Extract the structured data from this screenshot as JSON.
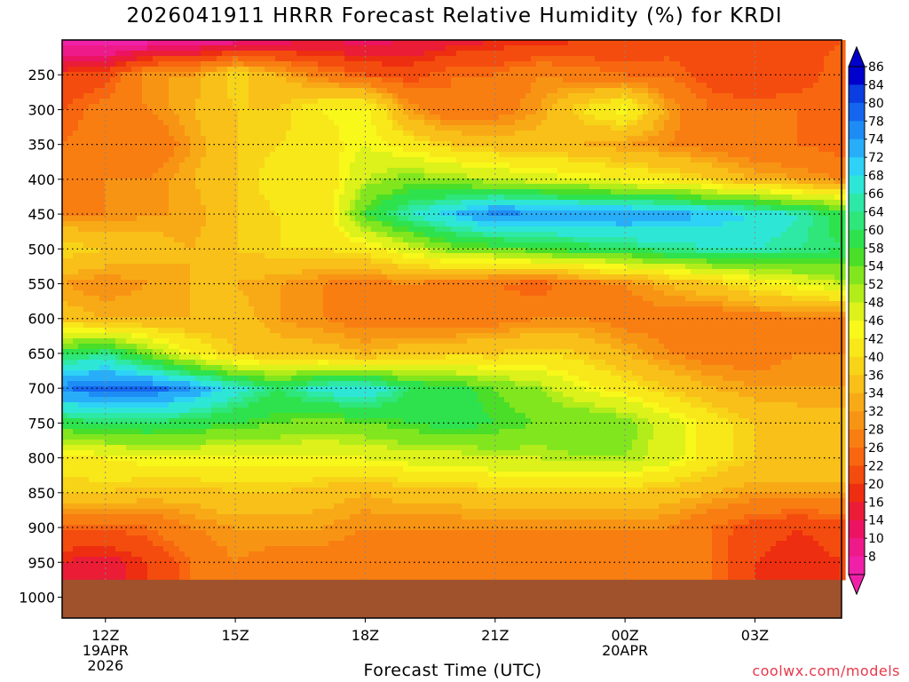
{
  "title": "2026041911 HRRR Forecast Relative Humidity (%) for KRDI",
  "xlabel": "Forecast Time (UTC)",
  "credit": "coolwx.com/models",
  "chart_data": {
    "type": "heatmap",
    "title": "2026041911 HRRR Forecast Relative Humidity (%) for KRDI",
    "xlabel": "Forecast Time (UTC)",
    "ylabel": "",
    "units": "%",
    "y_axis_reversed": true,
    "y_ticks": [
      250,
      300,
      350,
      400,
      450,
      500,
      550,
      600,
      650,
      700,
      750,
      800,
      850,
      900,
      950,
      1000
    ],
    "x_ticks": [
      {
        "label": "12Z",
        "sub1": "19APR",
        "sub2": "2026"
      },
      {
        "label": "15Z",
        "sub1": "",
        "sub2": ""
      },
      {
        "label": "18Z",
        "sub1": "",
        "sub2": ""
      },
      {
        "label": "21Z",
        "sub1": "",
        "sub2": ""
      },
      {
        "label": "00Z",
        "sub1": "20APR",
        "sub2": ""
      },
      {
        "label": "03Z",
        "sub1": "",
        "sub2": ""
      }
    ],
    "x_hours": [
      11,
      12,
      13,
      14,
      15,
      16,
      17,
      18,
      19,
      20,
      21,
      22,
      23,
      24,
      25,
      26,
      27,
      28,
      29
    ],
    "x_start_hour": 11,
    "x_end_hour": 29,
    "levels": [
      200,
      250,
      300,
      350,
      400,
      450,
      500,
      550,
      600,
      650,
      700,
      750,
      800,
      850,
      900,
      950
    ],
    "surface_pressure": 975,
    "grid": true,
    "colorbar": {
      "labels": [
        86,
        84,
        80,
        78,
        74,
        72,
        68,
        66,
        64,
        60,
        58,
        54,
        52,
        48,
        46,
        42,
        40,
        36,
        34,
        32,
        28,
        26,
        22,
        20,
        16,
        14,
        10,
        8
      ],
      "colors": [
        "#0000cc",
        "#0a3ee0",
        "#1466ee",
        "#1e8cf5",
        "#28aef8",
        "#2ed2f6",
        "#2ee6d6",
        "#2ee8a6",
        "#2ee67a",
        "#2ee24e",
        "#4ade28",
        "#82e61e",
        "#b2ec1a",
        "#dcf21a",
        "#f8f81a",
        "#f8e81a",
        "#f8d418",
        "#f8c018",
        "#f8aa16",
        "#f89414",
        "#f87e12",
        "#f86610",
        "#f44c0e",
        "#ee2e10",
        "#ea1c36",
        "#ec1462",
        "#ee1a8a",
        "#f020a8"
      ],
      "bounds": [
        null,
        86,
        84,
        80,
        78,
        74,
        72,
        68,
        66,
        64,
        60,
        58,
        54,
        52,
        48,
        46,
        42,
        40,
        36,
        34,
        32,
        28,
        26,
        22,
        20,
        16,
        14,
        10,
        8
      ]
    },
    "values": [
      [
        8,
        6,
        8,
        10,
        12,
        14,
        16,
        14,
        16,
        18,
        20,
        20,
        22,
        22,
        24,
        24,
        24,
        24,
        26
      ],
      [
        22,
        24,
        34,
        34,
        42,
        36,
        30,
        26,
        24,
        28,
        28,
        32,
        30,
        28,
        28,
        24,
        22,
        24,
        28
      ],
      [
        26,
        30,
        32,
        36,
        40,
        40,
        46,
        48,
        34,
        28,
        30,
        34,
        42,
        48,
        34,
        28,
        28,
        28,
        26
      ],
      [
        28,
        30,
        28,
        34,
        40,
        42,
        44,
        48,
        44,
        40,
        38,
        38,
        36,
        34,
        32,
        30,
        28,
        28,
        26
      ],
      [
        30,
        32,
        32,
        36,
        40,
        44,
        42,
        52,
        56,
        54,
        52,
        50,
        48,
        46,
        44,
        40,
        36,
        34,
        32
      ],
      [
        32,
        32,
        34,
        34,
        40,
        42,
        42,
        60,
        68,
        74,
        80,
        78,
        78,
        78,
        76,
        74,
        72,
        68,
        62
      ],
      [
        42,
        40,
        38,
        36,
        40,
        42,
        42,
        44,
        50,
        56,
        58,
        60,
        62,
        64,
        66,
        68,
        68,
        66,
        64
      ],
      [
        34,
        32,
        34,
        36,
        36,
        34,
        32,
        30,
        32,
        30,
        28,
        26,
        30,
        32,
        36,
        40,
        44,
        48,
        52
      ],
      [
        38,
        36,
        36,
        36,
        38,
        34,
        32,
        30,
        30,
        28,
        30,
        32,
        32,
        30,
        30,
        28,
        30,
        30,
        30
      ],
      [
        62,
        66,
        56,
        46,
        40,
        38,
        38,
        36,
        38,
        40,
        40,
        42,
        40,
        36,
        32,
        30,
        30,
        32,
        32
      ],
      [
        80,
        82,
        82,
        78,
        70,
        64,
        70,
        72,
        64,
        62,
        58,
        54,
        48,
        44,
        40,
        36,
        34,
        34,
        34
      ],
      [
        62,
        64,
        64,
        62,
        60,
        58,
        56,
        58,
        60,
        62,
        60,
        58,
        58,
        56,
        50,
        44,
        40,
        38,
        38
      ],
      [
        44,
        46,
        48,
        48,
        48,
        48,
        48,
        48,
        50,
        50,
        52,
        52,
        54,
        54,
        50,
        44,
        40,
        40,
        40
      ],
      [
        40,
        40,
        38,
        38,
        40,
        40,
        38,
        36,
        38,
        38,
        40,
        40,
        40,
        40,
        38,
        36,
        34,
        34,
        34
      ],
      [
        26,
        26,
        28,
        32,
        34,
        34,
        34,
        32,
        32,
        32,
        32,
        32,
        32,
        32,
        32,
        28,
        24,
        22,
        24
      ],
      [
        20,
        18,
        22,
        28,
        32,
        30,
        30,
        30,
        30,
        30,
        30,
        30,
        30,
        30,
        30,
        28,
        22,
        20,
        22
      ]
    ]
  }
}
